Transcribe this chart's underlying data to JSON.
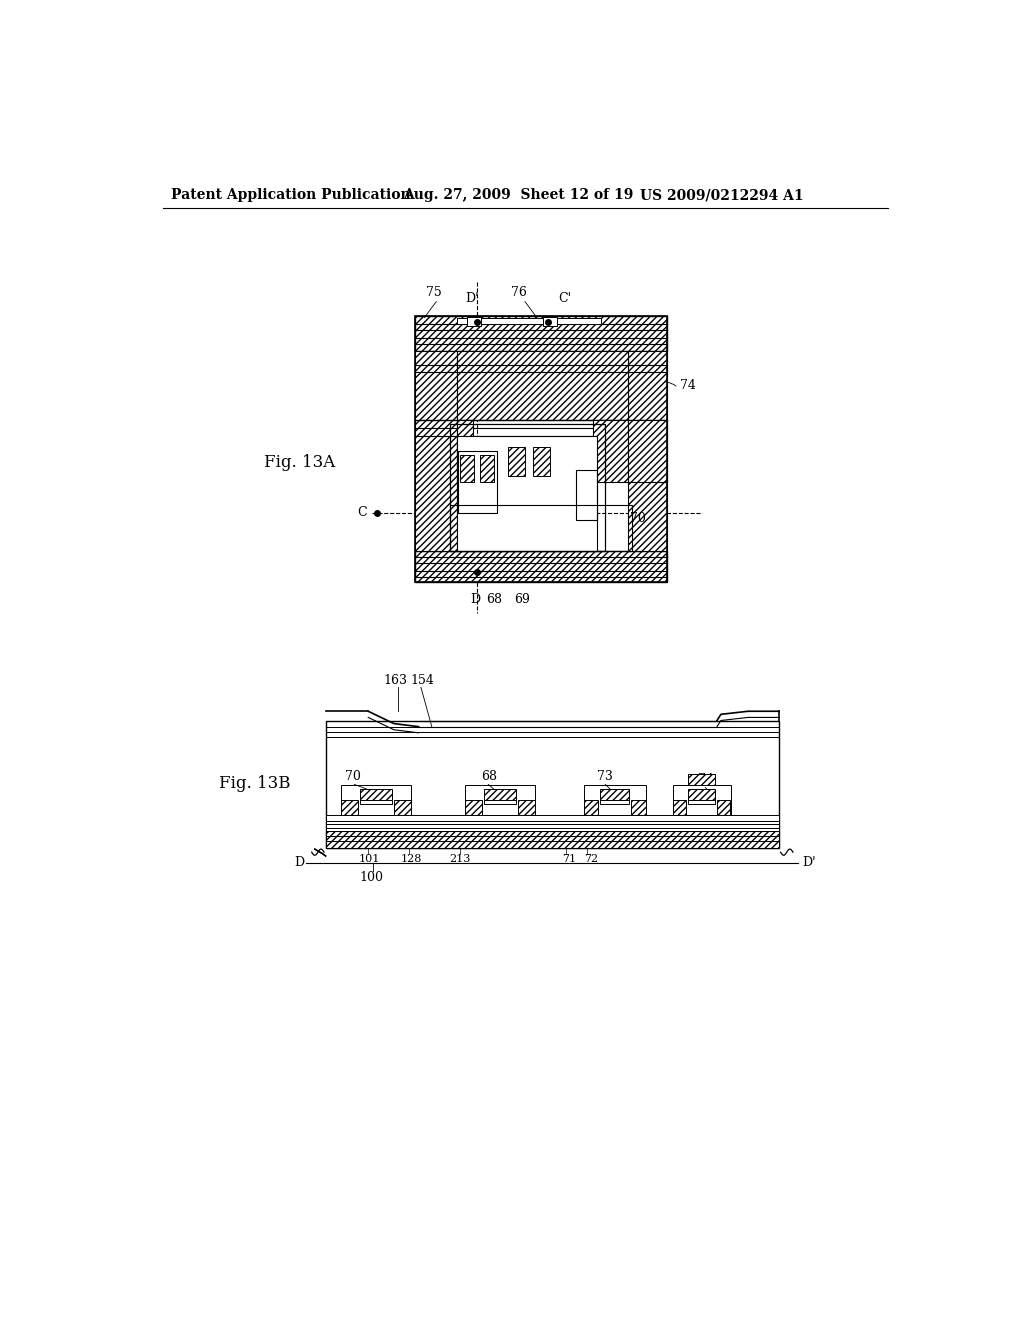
{
  "background_color": "#ffffff",
  "header_left": "Patent Application Publication",
  "header_mid": "Aug. 27, 2009  Sheet 12 of 19",
  "header_right": "US 2009/0212294 A1",
  "fig13a_label": "Fig. 13A",
  "fig13b_label": "Fig. 13B",
  "line_color": "#000000",
  "label_fontsize": 9,
  "header_fontsize": 10
}
